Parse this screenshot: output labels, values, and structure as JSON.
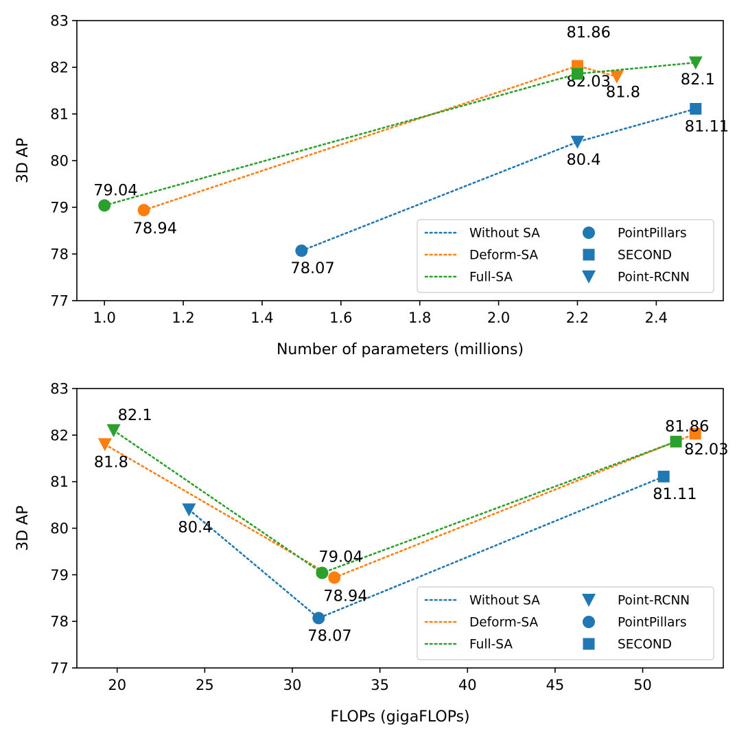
{
  "colors": {
    "Without SA": "#1f77b4",
    "Deform-SA": "#ff7f0e",
    "Full-SA": "#2ca02c",
    "legend_marker": "#1f77b4"
  },
  "chart_data": [
    {
      "type": "line",
      "xlabel": "Number of parameters (millions)",
      "ylabel": "3D AP",
      "xlim": [
        0.93,
        2.57
      ],
      "ylim": [
        77,
        83
      ],
      "xticks": [
        "1.0",
        "1.2",
        "1.4",
        "1.6",
        "1.8",
        "2.0",
        "2.2",
        "2.4"
      ],
      "yticks": [
        "77",
        "78",
        "79",
        "80",
        "81",
        "82",
        "83"
      ],
      "legend_location": "lower-right",
      "series": [
        {
          "name": "Without SA",
          "points": [
            {
              "x": 1.5,
              "y": 78.07,
              "marker": "PointPillars",
              "label": "78.07"
            },
            {
              "x": 2.2,
              "y": 80.4,
              "marker": "Point-RCNN",
              "label": "80.4"
            },
            {
              "x": 2.5,
              "y": 81.11,
              "marker": "SECOND",
              "label": "81.11"
            }
          ]
        },
        {
          "name": "Deform-SA",
          "points": [
            {
              "x": 1.1,
              "y": 78.94,
              "marker": "PointPillars",
              "label": "78.94"
            },
            {
              "x": 2.2,
              "y": 82.03,
              "marker": "SECOND",
              "label": "82.03"
            },
            {
              "x": 2.3,
              "y": 81.8,
              "marker": "Point-RCNN",
              "label": "81.8"
            }
          ]
        },
        {
          "name": "Full-SA",
          "points": [
            {
              "x": 1.0,
              "y": 79.04,
              "marker": "PointPillars",
              "label": "79.04"
            },
            {
              "x": 2.2,
              "y": 81.86,
              "marker": "SECOND",
              "label": "81.86"
            },
            {
              "x": 2.5,
              "y": 82.1,
              "marker": "Point-RCNN",
              "label": "82.1"
            }
          ]
        }
      ],
      "legend_lines": [
        "Without SA",
        "Deform-SA",
        "Full-SA"
      ],
      "legend_markers": [
        "PointPillars",
        "SECOND",
        "Point-RCNN"
      ]
    },
    {
      "type": "line",
      "xlabel": "FLOPs (gigaFLOPs)",
      "ylabel": "3D AP",
      "xlim": [
        17.7,
        54.6
      ],
      "ylim": [
        77,
        83
      ],
      "xticks": [
        "20",
        "25",
        "30",
        "35",
        "40",
        "45",
        "50"
      ],
      "yticks": [
        "77",
        "78",
        "79",
        "80",
        "81",
        "82",
        "83"
      ],
      "legend_location": "lower-right",
      "series": [
        {
          "name": "Without SA",
          "points": [
            {
              "x": 24.1,
              "y": 80.4,
              "marker": "Point-RCNN",
              "label": "80.4"
            },
            {
              "x": 31.5,
              "y": 78.07,
              "marker": "PointPillars",
              "label": "78.07"
            },
            {
              "x": 51.2,
              "y": 81.11,
              "marker": "SECOND",
              "label": "81.11"
            }
          ]
        },
        {
          "name": "Deform-SA",
          "points": [
            {
              "x": 19.3,
              "y": 81.8,
              "marker": "Point-RCNN",
              "label": "81.8"
            },
            {
              "x": 32.4,
              "y": 78.94,
              "marker": "PointPillars",
              "label": "78.94"
            },
            {
              "x": 53.0,
              "y": 82.03,
              "marker": "SECOND",
              "label": "82.03"
            }
          ]
        },
        {
          "name": "Full-SA",
          "points": [
            {
              "x": 19.8,
              "y": 82.1,
              "marker": "Point-RCNN",
              "label": "82.1"
            },
            {
              "x": 31.7,
              "y": 79.04,
              "marker": "PointPillars",
              "label": "79.04"
            },
            {
              "x": 51.9,
              "y": 81.86,
              "marker": "SECOND",
              "label": "81.86"
            }
          ]
        }
      ],
      "legend_lines": [
        "Without SA",
        "Deform-SA",
        "Full-SA"
      ],
      "legend_markers": [
        "Point-RCNN",
        "PointPillars",
        "SECOND"
      ]
    }
  ]
}
